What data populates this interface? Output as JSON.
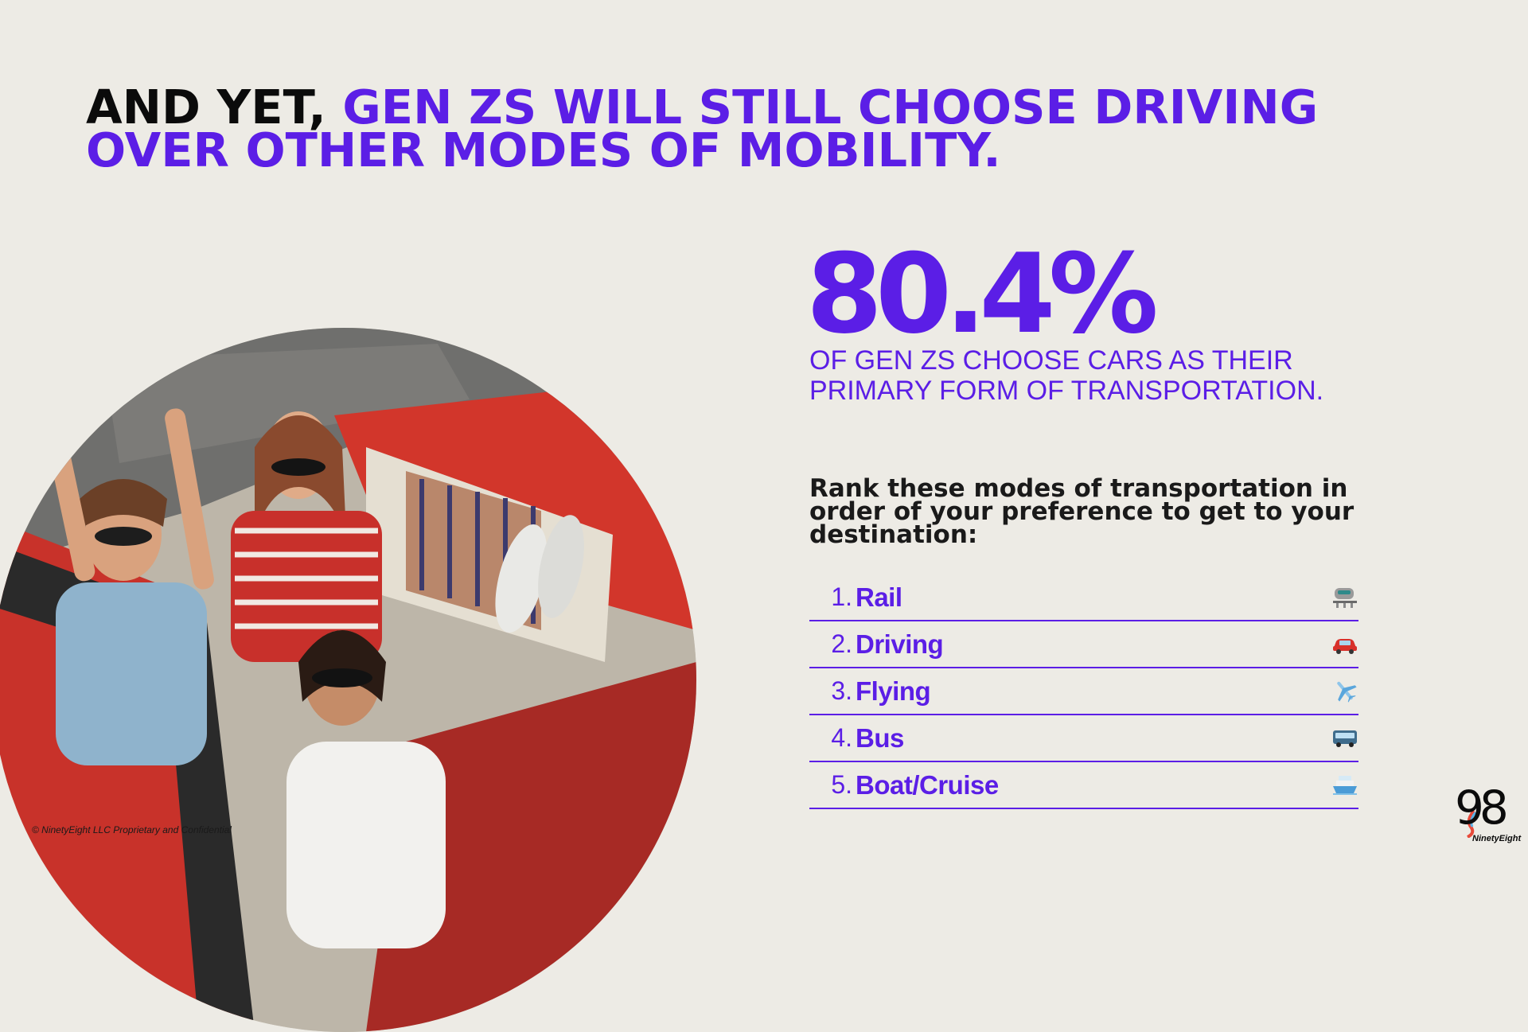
{
  "headline": {
    "lead": "AND YET,",
    "accent": "GEN ZS WILL STILL CHOOSE DRIVING OVER OTHER MODES OF MOBILITY."
  },
  "stat": {
    "value": "80.4%",
    "caption": "OF GEN ZS CHOOSE CARS AS THEIR PRIMARY FORM OF TRANSPORTATION."
  },
  "question": "Rank these modes of transportation in order of your preference to get to your destination:",
  "ranking": [
    {
      "number": "1.",
      "label": "Rail",
      "icon": "train-icon"
    },
    {
      "number": "2.",
      "label": "Driving",
      "icon": "car-icon"
    },
    {
      "number": "3.",
      "label": "Flying",
      "icon": "airplane-icon"
    },
    {
      "number": "4.",
      "label": "Bus",
      "icon": "bus-icon"
    },
    {
      "number": "5.",
      "label": "Boat/Cruise",
      "icon": "ship-icon"
    }
  ],
  "footer": {
    "copyright": "© NinetyEight LLC Proprietary and Confidential",
    "logo_digits": "98",
    "logo_name": "NinetyEight"
  },
  "colors": {
    "accent": "#5b1ee6",
    "background": "#edebe5",
    "text_dark": "#0b0b0b"
  }
}
